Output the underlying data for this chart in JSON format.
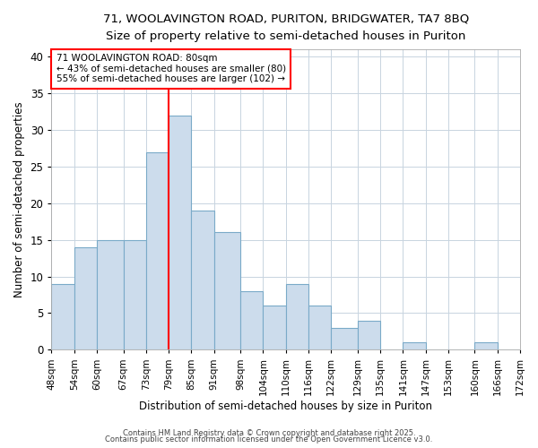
{
  "title1": "71, WOOLAVINGTON ROAD, PURITON, BRIDGWATER, TA7 8BQ",
  "title2": "Size of property relative to semi-detached houses in Puriton",
  "xlabel": "Distribution of semi-detached houses by size in Puriton",
  "ylabel": "Number of semi-detached properties",
  "bin_edges": [
    48,
    54,
    60,
    67,
    73,
    79,
    85,
    91,
    98,
    104,
    110,
    116,
    122,
    129,
    135,
    141,
    147,
    153,
    160,
    166,
    172
  ],
  "bar_heights": [
    9,
    14,
    15,
    15,
    27,
    32,
    19,
    16,
    8,
    6,
    9,
    6,
    3,
    4,
    0,
    1,
    0,
    0,
    1,
    0
  ],
  "tick_labels": [
    "48sqm",
    "54sqm",
    "60sqm",
    "67sqm",
    "73sqm",
    "79sqm",
    "85sqm",
    "91sqm",
    "98sqm",
    "104sqm",
    "110sqm",
    "116sqm",
    "122sqm",
    "129sqm",
    "135sqm",
    "141sqm",
    "147sqm",
    "153sqm",
    "160sqm",
    "166sqm",
    "172sqm"
  ],
  "bar_color": "#ccdcec",
  "bar_edge_color": "#7aaac8",
  "red_line_x": 79,
  "ylim": [
    0,
    41
  ],
  "yticks": [
    0,
    5,
    10,
    15,
    20,
    25,
    30,
    35,
    40
  ],
  "annotation_title": "71 WOOLAVINGTON ROAD: 80sqm",
  "annotation_line1": "← 43% of semi-detached houses are smaller (80)",
  "annotation_line2": "55% of semi-detached houses are larger (102) →",
  "footer1": "Contains HM Land Registry data © Crown copyright and database right 2025.",
  "footer2": "Contains public sector information licensed under the Open Government Licence v3.0.",
  "bg_color": "#ffffff",
  "plot_bg_color": "#ffffff",
  "grid_color": "#c8d4e0"
}
